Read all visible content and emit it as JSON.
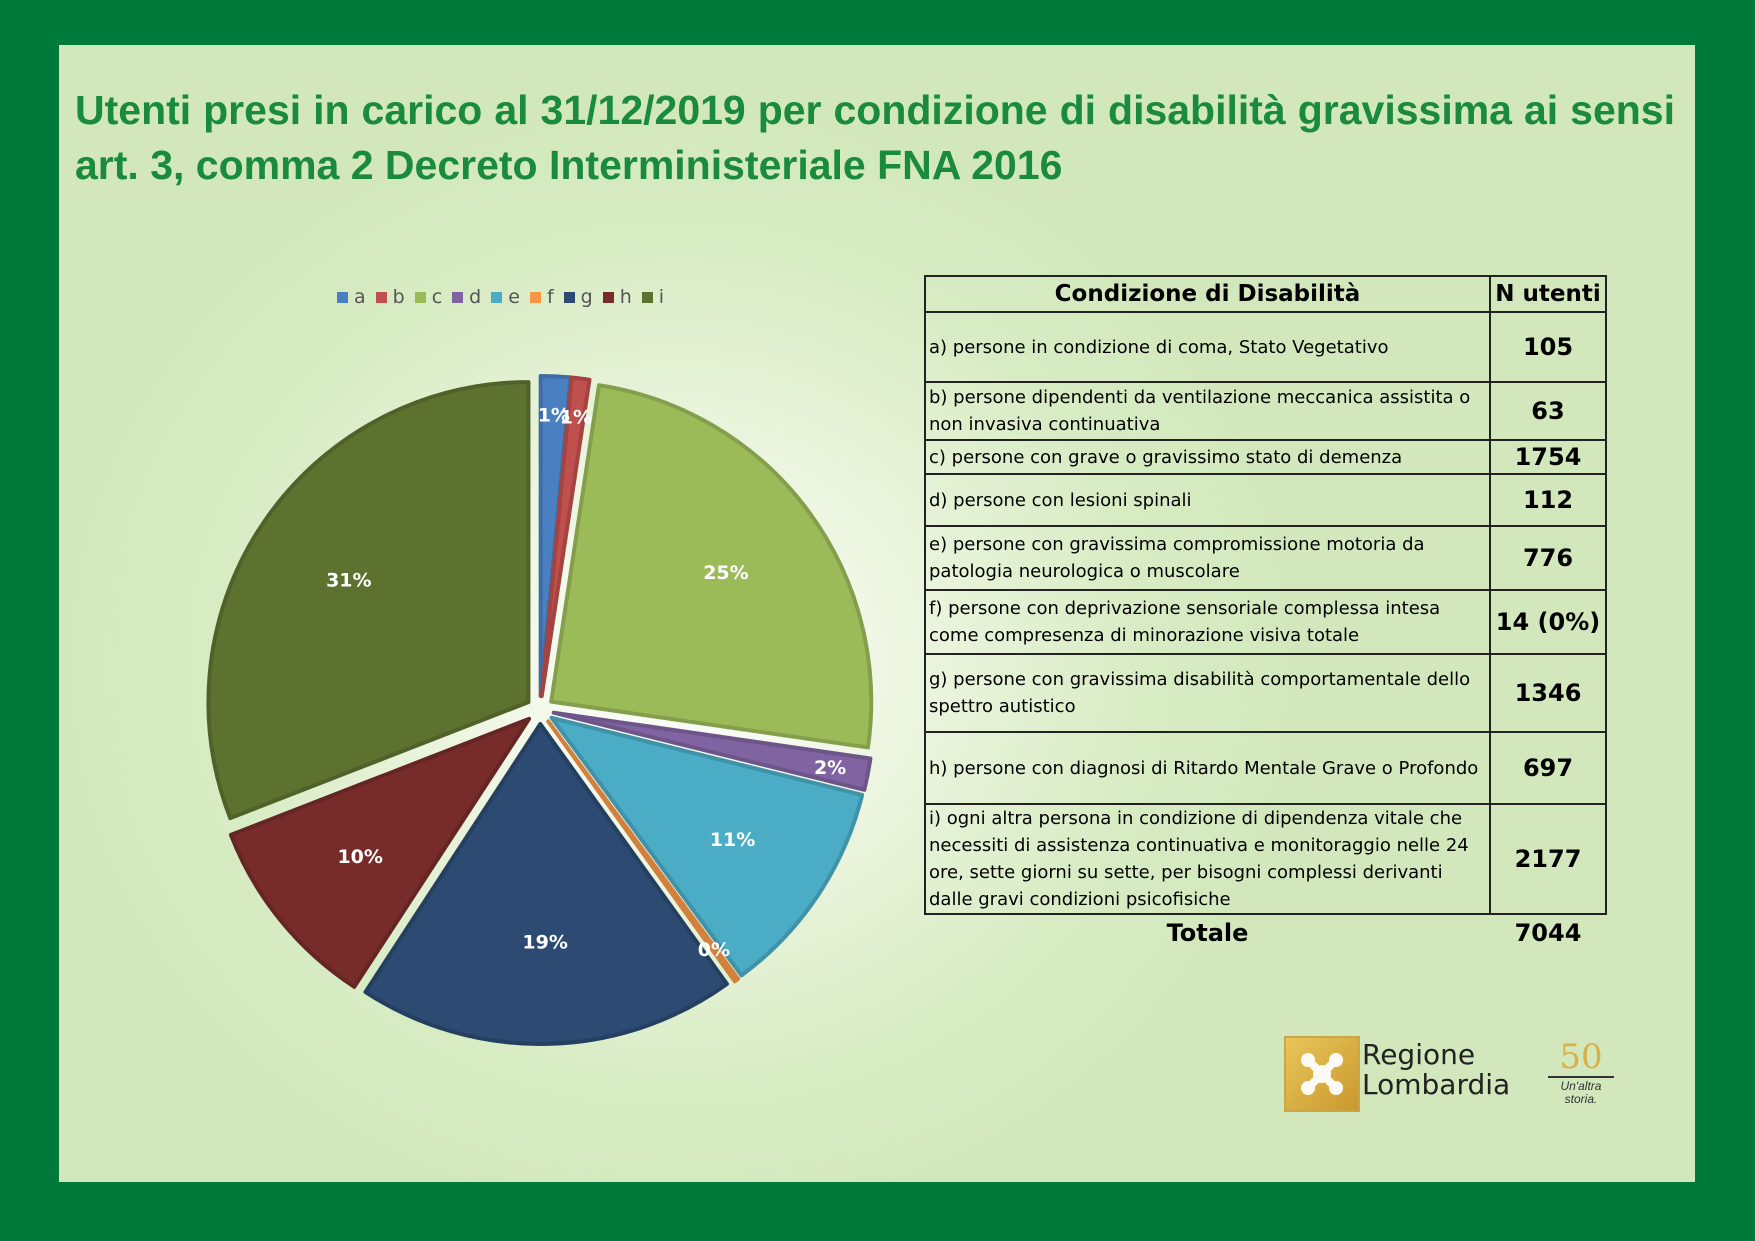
{
  "title": "Utenti presi in carico al 31/12/2019 per condizione di disabilità gravissima ai sensi art. 3, comma 2 Decreto Interministeriale FNA 2016",
  "chart_data": {
    "type": "pie",
    "categories": [
      "a",
      "b",
      "c",
      "d",
      "e",
      "f",
      "g",
      "h",
      "i"
    ],
    "values": [
      105,
      63,
      1754,
      112,
      776,
      14,
      1346,
      697,
      2177
    ],
    "data_labels": [
      "1%",
      "1%",
      "25%",
      "2%",
      "11%",
      "0%",
      "19%",
      "10%",
      "31%"
    ],
    "colors": [
      "#4a7fc1",
      "#c0504d",
      "#9bbb59",
      "#8064a2",
      "#4bacc6",
      "#f79646",
      "#2c4a72",
      "#772c2a",
      "#5e7230"
    ],
    "legend_position": "top"
  },
  "table": {
    "header": {
      "condition": "Condizione di Disabilità",
      "count": "N utenti"
    },
    "rows": [
      {
        "condition": "a) persone in condizione di coma, Stato Vegetativo",
        "count": "105"
      },
      {
        "condition": "b) persone dipendenti da ventilazione meccanica assistita o non invasiva continuativa",
        "count": "63"
      },
      {
        "condition": "c) persone con grave o gravissimo stato di demenza",
        "count": "1754"
      },
      {
        "condition": "d) persone con lesioni spinali",
        "count": "112"
      },
      {
        "condition": "e) persone con gravissima compromissione motoria da patologia neurologica o muscolare",
        "count": "776"
      },
      {
        "condition": "f) persone con deprivazione sensoriale complessa intesa come compresenza di minorazione visiva totale",
        "count": "14 (0%)"
      },
      {
        "condition": "g) persone con gravissima disabilità comportamentale dello spettro autistico",
        "count": "1346"
      },
      {
        "condition": "h) persone con diagnosi di Ritardo Mentale Grave o Profondo",
        "count": "697"
      },
      {
        "condition": "i) ogni altra persona in condizione di dipendenza vitale che necessiti di assistenza continuativa e monitoraggio nelle 24 ore, sette giorni su sette, per bisogni complessi derivanti dalle gravi condizioni psicofisiche",
        "count": "2177"
      }
    ],
    "total_label": "Totale",
    "total_value": "7044"
  },
  "logo": {
    "line1": "Regione",
    "line2": "Lombardia",
    "anniversary": "50",
    "tagline1": "Un'altra",
    "tagline2": "storia."
  }
}
